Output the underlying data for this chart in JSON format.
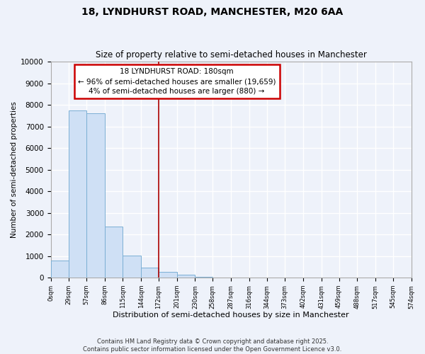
{
  "title": "18, LYNDHURST ROAD, MANCHESTER, M20 6AA",
  "subtitle": "Size of property relative to semi-detached houses in Manchester",
  "xlabel": "Distribution of semi-detached houses by size in Manchester",
  "ylabel": "Number of semi-detached properties",
  "bar_color": "#cfe0f5",
  "bar_edge_color": "#7bafd4",
  "property_line_x": 172,
  "property_line_color": "#aa0000",
  "bin_edges": [
    0,
    29,
    57,
    86,
    115,
    144,
    172,
    201,
    230,
    258,
    287,
    316,
    344,
    373,
    402,
    431,
    459,
    488,
    517,
    545,
    574
  ],
  "bar_heights": [
    800,
    7750,
    7600,
    2350,
    1020,
    450,
    280,
    120,
    50,
    0,
    0,
    0,
    0,
    0,
    0,
    0,
    0,
    0,
    0,
    0
  ],
  "tick_labels": [
    "0sqm",
    "29sqm",
    "57sqm",
    "86sqm",
    "115sqm",
    "144sqm",
    "172sqm",
    "201sqm",
    "230sqm",
    "258sqm",
    "287sqm",
    "316sqm",
    "344sqm",
    "373sqm",
    "402sqm",
    "431sqm",
    "459sqm",
    "488sqm",
    "517sqm",
    "545sqm",
    "574sqm"
  ],
  "ylim": [
    0,
    10000
  ],
  "yticks": [
    0,
    1000,
    2000,
    3000,
    4000,
    5000,
    6000,
    7000,
    8000,
    9000,
    10000
  ],
  "annotation_title": "18 LYNDHURST ROAD: 180sqm",
  "annotation_line1": "← 96% of semi-detached houses are smaller (19,659)",
  "annotation_line2": "4% of semi-detached houses are larger (880) →",
  "annotation_box_color": "#ffffff",
  "annotation_box_edge": "#cc0000",
  "footnote1": "Contains HM Land Registry data © Crown copyright and database right 2025.",
  "footnote2": "Contains public sector information licensed under the Open Government Licence v3.0.",
  "background_color": "#eef2fa",
  "grid_color": "#ffffff",
  "spine_color": "#aaaaaa"
}
